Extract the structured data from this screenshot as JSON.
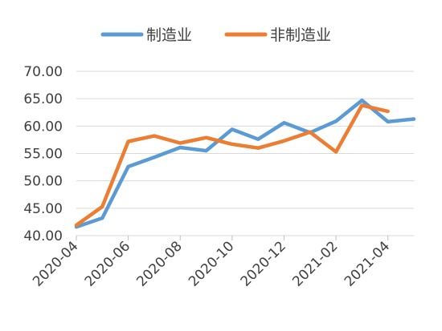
{
  "chart_data": {
    "type": "line",
    "title": "",
    "xlabel": "",
    "ylabel": "",
    "x": [
      "2020-04",
      "2020-05",
      "2020-06",
      "2020-07",
      "2020-08",
      "2020-09",
      "2020-10",
      "2020-11",
      "2020-12",
      "2021-01",
      "2021-02",
      "2021-03",
      "2021-04",
      "2021-05"
    ],
    "x_tick_labels": [
      "2020-04",
      "2020-06",
      "2020-08",
      "2020-10",
      "2020-12",
      "2021-02",
      "2021-04"
    ],
    "y_tick_labels": [
      "40.00",
      "45.00",
      "50.00",
      "55.00",
      "60.00",
      "65.00",
      "70.00"
    ],
    "ylim": [
      40,
      70
    ],
    "grid": "horizontal",
    "legend_position": "top",
    "series": [
      {
        "name": "制造业",
        "color": "#5B9BD5",
        "values": [
          41.6,
          43.2,
          52.6,
          54.3,
          56.1,
          55.5,
          59.4,
          57.6,
          60.6,
          58.8,
          60.9,
          64.7,
          60.8,
          61.3
        ]
      },
      {
        "name": "非制造业",
        "color": "#ED7D31",
        "values": [
          41.9,
          45.3,
          57.2,
          58.2,
          56.9,
          57.9,
          56.7,
          56.0,
          57.3,
          58.9,
          55.3,
          63.8,
          62.7,
          null
        ]
      }
    ]
  }
}
